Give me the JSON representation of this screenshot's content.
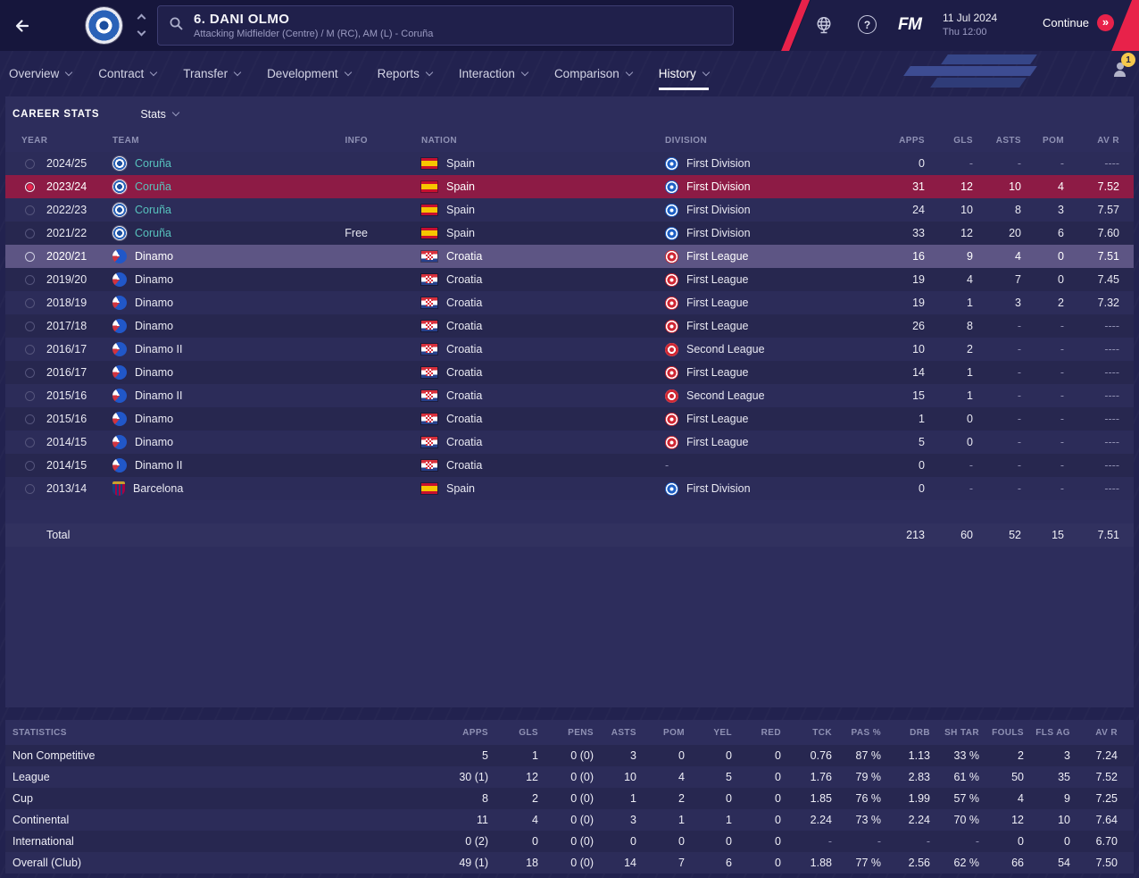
{
  "theme": {
    "accent_red": "#e8224a",
    "row_selected": "#8d1b45",
    "row_highlight": "#5d5584",
    "team_link": "#57c2bd",
    "badge_yellow": "#f5c84c"
  },
  "icons": {
    "back": "left-arrow",
    "search": "magnifier",
    "help": "?",
    "continue": "»",
    "world": "globe",
    "notification": "person-with-badge"
  },
  "topbar": {
    "title": "6. DANI OLMO",
    "subtitle": "Attacking Midfielder (Centre) / M (RC), AM (L) - Coruña",
    "fm_logo": "FM",
    "date": "11 Jul 2024",
    "time": "Thu 12:00",
    "continue_label": "Continue"
  },
  "nav": {
    "items": [
      "Overview",
      "Contract",
      "Transfer",
      "Development",
      "Reports",
      "Interaction",
      "Comparison",
      "History"
    ],
    "active": "History",
    "badge": "1"
  },
  "career": {
    "title": "CAREER STATS",
    "filter_label": "Stats",
    "columns": [
      "YEAR",
      "TEAM",
      "INFO",
      "NATION",
      "DIVISION",
      "APPS",
      "GLS",
      "ASTS",
      "POM",
      "AV R"
    ],
    "rows": [
      {
        "year": "2024/25",
        "team": "Coruña",
        "badge": "coruna",
        "team_class": "accent",
        "info": "",
        "flag": "spain",
        "nation": "Spain",
        "div_icon": "blue",
        "division": "First Division",
        "apps": "0",
        "gls": "-",
        "asts": "-",
        "pom": "-",
        "avr": "----",
        "state": "normal"
      },
      {
        "year": "2023/24",
        "team": "Coruña",
        "badge": "coruna",
        "team_class": "accent",
        "info": "",
        "flag": "spain",
        "nation": "Spain",
        "div_icon": "blue",
        "division": "First Division",
        "apps": "31",
        "gls": "12",
        "asts": "10",
        "pom": "4",
        "avr": "7.52",
        "state": "selected"
      },
      {
        "year": "2022/23",
        "team": "Coruña",
        "badge": "coruna",
        "team_class": "accent",
        "info": "",
        "flag": "spain",
        "nation": "Spain",
        "div_icon": "blue",
        "division": "First Division",
        "apps": "24",
        "gls": "10",
        "asts": "8",
        "pom": "3",
        "avr": "7.57",
        "state": "normal"
      },
      {
        "year": "2021/22",
        "team": "Coruña",
        "badge": "coruna",
        "team_class": "accent",
        "info": "Free",
        "flag": "spain",
        "nation": "Spain",
        "div_icon": "blue",
        "division": "First Division",
        "apps": "33",
        "gls": "12",
        "asts": "20",
        "pom": "6",
        "avr": "7.60",
        "state": "normal"
      },
      {
        "year": "2020/21",
        "team": "Dinamo",
        "badge": "dinamo",
        "team_class": "",
        "info": "",
        "flag": "croatia",
        "nation": "Croatia",
        "div_icon": "red",
        "division": "First League",
        "apps": "16",
        "gls": "9",
        "asts": "4",
        "pom": "0",
        "avr": "7.51",
        "state": "highlight"
      },
      {
        "year": "2019/20",
        "team": "Dinamo",
        "badge": "dinamo",
        "team_class": "",
        "info": "",
        "flag": "croatia",
        "nation": "Croatia",
        "div_icon": "red",
        "division": "First League",
        "apps": "19",
        "gls": "4",
        "asts": "7",
        "pom": "0",
        "avr": "7.45",
        "state": "normal"
      },
      {
        "year": "2018/19",
        "team": "Dinamo",
        "badge": "dinamo",
        "team_class": "",
        "info": "",
        "flag": "croatia",
        "nation": "Croatia",
        "div_icon": "red",
        "division": "First League",
        "apps": "19",
        "gls": "1",
        "asts": "3",
        "pom": "2",
        "avr": "7.32",
        "state": "normal"
      },
      {
        "year": "2017/18",
        "team": "Dinamo",
        "badge": "dinamo",
        "team_class": "",
        "info": "",
        "flag": "croatia",
        "nation": "Croatia",
        "div_icon": "red",
        "division": "First League",
        "apps": "26",
        "gls": "8",
        "asts": "-",
        "pom": "-",
        "avr": "----",
        "state": "normal"
      },
      {
        "year": "2016/17",
        "team": "Dinamo II",
        "badge": "dinamo",
        "team_class": "",
        "info": "",
        "flag": "croatia",
        "nation": "Croatia",
        "div_icon": "red2",
        "division": "Second League",
        "apps": "10",
        "gls": "2",
        "asts": "-",
        "pom": "-",
        "avr": "----",
        "state": "normal"
      },
      {
        "year": "2016/17",
        "team": "Dinamo",
        "badge": "dinamo",
        "team_class": "",
        "info": "",
        "flag": "croatia",
        "nation": "Croatia",
        "div_icon": "red",
        "division": "First League",
        "apps": "14",
        "gls": "1",
        "asts": "-",
        "pom": "-",
        "avr": "----",
        "state": "normal"
      },
      {
        "year": "2015/16",
        "team": "Dinamo II",
        "badge": "dinamo",
        "team_class": "",
        "info": "",
        "flag": "croatia",
        "nation": "Croatia",
        "div_icon": "red2",
        "division": "Second League",
        "apps": "15",
        "gls": "1",
        "asts": "-",
        "pom": "-",
        "avr": "----",
        "state": "normal"
      },
      {
        "year": "2015/16",
        "team": "Dinamo",
        "badge": "dinamo",
        "team_class": "",
        "info": "",
        "flag": "croatia",
        "nation": "Croatia",
        "div_icon": "red",
        "division": "First League",
        "apps": "1",
        "gls": "0",
        "asts": "-",
        "pom": "-",
        "avr": "----",
        "state": "normal"
      },
      {
        "year": "2014/15",
        "team": "Dinamo",
        "badge": "dinamo",
        "team_class": "",
        "info": "",
        "flag": "croatia",
        "nation": "Croatia",
        "div_icon": "red",
        "division": "First League",
        "apps": "5",
        "gls": "0",
        "asts": "-",
        "pom": "-",
        "avr": "----",
        "state": "normal"
      },
      {
        "year": "2014/15",
        "team": "Dinamo II",
        "badge": "dinamo",
        "team_class": "",
        "info": "",
        "flag": "croatia",
        "nation": "Croatia",
        "div_icon": "none",
        "division": "-",
        "apps": "0",
        "gls": "-",
        "asts": "-",
        "pom": "-",
        "avr": "----",
        "state": "normal"
      },
      {
        "year": "2013/14",
        "team": "Barcelona",
        "badge": "barcelona",
        "team_class": "",
        "info": "",
        "flag": "spain",
        "nation": "Spain",
        "div_icon": "blue",
        "division": "First Division",
        "apps": "0",
        "gls": "-",
        "asts": "-",
        "pom": "-",
        "avr": "----",
        "state": "normal"
      }
    ],
    "total": {
      "label": "Total",
      "apps": "213",
      "gls": "60",
      "asts": "52",
      "pom": "15",
      "avr": "7.51"
    }
  },
  "statistics": {
    "columns": [
      "STATISTICS",
      "APPS",
      "GLS",
      "PENS",
      "ASTS",
      "POM",
      "YEL",
      "RED",
      "TCK",
      "PAS %",
      "DRB",
      "SH TAR",
      "FOULS",
      "FLS AG",
      "AV R"
    ],
    "rows": [
      {
        "label": "Non Competitive",
        "values": [
          "5",
          "1",
          "0 (0)",
          "3",
          "0",
          "0",
          "0",
          "0.76",
          "87 %",
          "1.13",
          "33 %",
          "2",
          "3",
          "7.24"
        ]
      },
      {
        "label": "League",
        "values": [
          "30 (1)",
          "12",
          "0 (0)",
          "10",
          "4",
          "5",
          "0",
          "1.76",
          "79 %",
          "2.83",
          "61 %",
          "50",
          "35",
          "7.52"
        ]
      },
      {
        "label": "Cup",
        "values": [
          "8",
          "2",
          "0 (0)",
          "1",
          "2",
          "0",
          "0",
          "1.85",
          "76 %",
          "1.99",
          "57 %",
          "4",
          "9",
          "7.25"
        ]
      },
      {
        "label": "Continental",
        "values": [
          "11",
          "4",
          "0 (0)",
          "3",
          "1",
          "1",
          "0",
          "2.24",
          "73 %",
          "2.24",
          "70 %",
          "12",
          "10",
          "7.64"
        ]
      },
      {
        "label": "International",
        "values": [
          "0 (2)",
          "0",
          "0 (0)",
          "0",
          "0",
          "0",
          "0",
          "-",
          "-",
          "-",
          "-",
          "0",
          "0",
          "6.70"
        ]
      },
      {
        "label": "Overall (Club)",
        "values": [
          "49 (1)",
          "18",
          "0 (0)",
          "14",
          "7",
          "6",
          "0",
          "1.88",
          "77 %",
          "2.56",
          "62 %",
          "66",
          "54",
          "7.50"
        ]
      }
    ]
  }
}
